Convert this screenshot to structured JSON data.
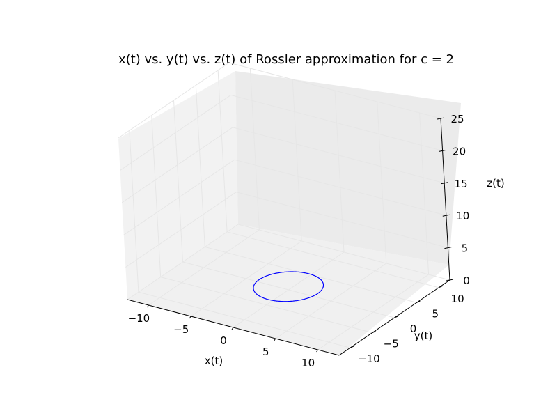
{
  "chart_data": {
    "type": "line3d",
    "title": "x(t) vs. y(t) vs. z(t) of Rossler approximation for c = 2",
    "xlabel": "x(t)",
    "ylabel": "y(t)",
    "zlabel": "z(t)",
    "xlim": [
      -12.5,
      12.5
    ],
    "ylim": [
      -12.5,
      12.5
    ],
    "zlim": [
      0,
      25
    ],
    "xticks": [
      -10,
      -5,
      0,
      5,
      10
    ],
    "yticks": [
      -10,
      -5,
      0,
      5,
      10
    ],
    "zticks": [
      0,
      5,
      10,
      15,
      20,
      25
    ],
    "xtick_labels": [
      "−10",
      "−5",
      "0",
      "5",
      "10"
    ],
    "ytick_labels": [
      "−10",
      "−5",
      "0",
      "5",
      "10"
    ],
    "ztick_labels": [
      "0",
      "5",
      "10",
      "15",
      "20",
      "25"
    ],
    "grid": true,
    "series": [
      {
        "color": "#0000ff",
        "shape": "closed-loop",
        "center": [
          0,
          0,
          0
        ],
        "x_range": [
          -3.7,
          3.6
        ],
        "y_range": [
          -3.8,
          3.8
        ],
        "z_range": [
          0,
          1
        ]
      }
    ]
  }
}
